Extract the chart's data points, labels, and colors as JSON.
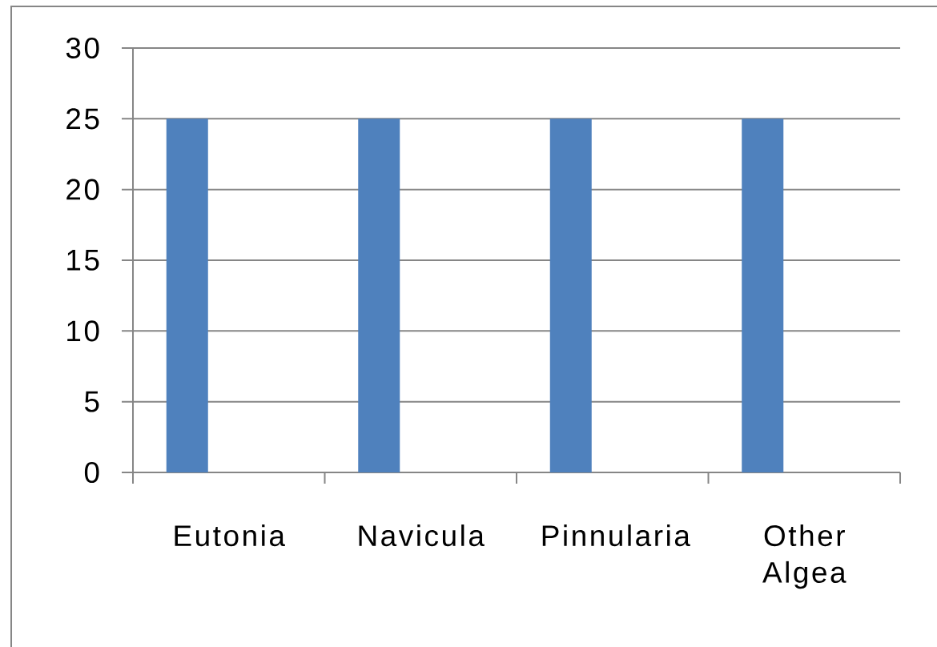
{
  "chart_data": {
    "type": "bar",
    "categories": [
      "Eutonia",
      "Navicula",
      "Pinnularia",
      "Other Algea"
    ],
    "values": [
      25,
      25,
      25,
      25
    ],
    "color": "#4f81bd",
    "ylim": [
      0,
      30
    ],
    "yticks": [
      0,
      5,
      10,
      15,
      20,
      25,
      30
    ],
    "grid": "y"
  }
}
